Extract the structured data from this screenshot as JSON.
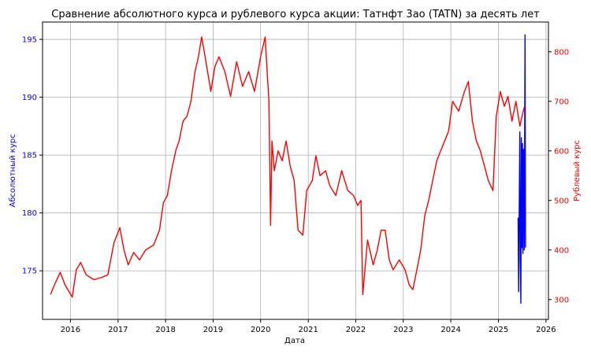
{
  "chart_data": {
    "type": "line",
    "title": "Сравнение абсолютного курса и рублевого курса акции: Татнфт 3ао (TATN) за десять лет",
    "xlabel": "Дата",
    "ylabel_left": "Абсолютный курс",
    "ylabel_right": "Рублевый курс",
    "x_ticks": [
      "2016",
      "2017",
      "2018",
      "2019",
      "2020",
      "2021",
      "2022",
      "2023",
      "2024",
      "2025",
      "2026"
    ],
    "y_left_ticks": [
      "175",
      "180",
      "185",
      "190",
      "195"
    ],
    "y_right_ticks": [
      "300",
      "400",
      "500",
      "600",
      "700",
      "800"
    ],
    "xlim": [
      "2015-06-01",
      "2026-01-20"
    ],
    "ylim_left": [
      170.8,
      196.5
    ],
    "ylim_right": [
      260,
      860
    ],
    "grid": true,
    "colors": {
      "absolute": "#0000ff",
      "ruble": "#ff0000",
      "left_axis": "#0000ff",
      "right_axis": "#ff0000"
    },
    "series": [
      {
        "axis": "left",
        "color": "#0000ff",
        "points": [
          [
            "2025-06-01",
            179.6
          ],
          [
            "2025-06-05",
            173.2
          ],
          [
            "2025-06-10",
            181.0
          ],
          [
            "2025-06-14",
            187.0
          ],
          [
            "2025-06-18",
            176.0
          ],
          [
            "2025-06-22",
            172.2
          ],
          [
            "2025-06-26",
            186.5
          ],
          [
            "2025-06-30",
            177.0
          ],
          [
            "2025-07-04",
            186.0
          ],
          [
            "2025-07-08",
            176.5
          ],
          [
            "2025-07-13",
            185.5
          ],
          [
            "2025-07-18",
            176.8
          ],
          [
            "2025-07-24",
            195.4
          ],
          [
            "2025-07-28",
            177.0
          ]
        ]
      },
      {
        "axis": "right",
        "color": "#ff0000",
        "points": [
          [
            "2015-08-01",
            310
          ],
          [
            "2015-09-01",
            330
          ],
          [
            "2015-10-15",
            355
          ],
          [
            "2015-11-20",
            330
          ],
          [
            "2016-01-15",
            305
          ],
          [
            "2016-02-15",
            360
          ],
          [
            "2016-03-20",
            375
          ],
          [
            "2016-05-01",
            350
          ],
          [
            "2016-07-01",
            340
          ],
          [
            "2016-09-01",
            345
          ],
          [
            "2016-10-15",
            350
          ],
          [
            "2016-12-01",
            415
          ],
          [
            "2017-01-15",
            445
          ],
          [
            "2017-02-15",
            400
          ],
          [
            "2017-03-20",
            370
          ],
          [
            "2017-05-01",
            395
          ],
          [
            "2017-06-15",
            380
          ],
          [
            "2017-08-01",
            400
          ],
          [
            "2017-10-01",
            410
          ],
          [
            "2017-11-15",
            440
          ],
          [
            "2017-12-15",
            495
          ],
          [
            "2018-01-15",
            510
          ],
          [
            "2018-02-15",
            560
          ],
          [
            "2018-03-20",
            600
          ],
          [
            "2018-04-15",
            620
          ],
          [
            "2018-05-15",
            660
          ],
          [
            "2018-06-15",
            670
          ],
          [
            "2018-07-15",
            700
          ],
          [
            "2018-08-15",
            760
          ],
          [
            "2018-09-10",
            790
          ],
          [
            "2018-10-05",
            830
          ],
          [
            "2018-11-01",
            790
          ],
          [
            "2018-12-15",
            720
          ],
          [
            "2019-01-15",
            770
          ],
          [
            "2019-02-15",
            790
          ],
          [
            "2019-04-01",
            760
          ],
          [
            "2019-05-15",
            710
          ],
          [
            "2019-07-01",
            780
          ],
          [
            "2019-08-15",
            730
          ],
          [
            "2019-10-01",
            760
          ],
          [
            "2019-11-15",
            720
          ],
          [
            "2020-01-01",
            790
          ],
          [
            "2020-02-05",
            830
          ],
          [
            "2020-02-20",
            760
          ],
          [
            "2020-03-05",
            700
          ],
          [
            "2020-03-18",
            450
          ],
          [
            "2020-03-28",
            620
          ],
          [
            "2020-04-15",
            560
          ],
          [
            "2020-05-15",
            600
          ],
          [
            "2020-06-15",
            580
          ],
          [
            "2020-07-15",
            620
          ],
          [
            "2020-08-15",
            570
          ],
          [
            "2020-09-15",
            540
          ],
          [
            "2020-10-15",
            440
          ],
          [
            "2020-11-20",
            430
          ],
          [
            "2020-12-20",
            520
          ],
          [
            "2021-02-01",
            540
          ],
          [
            "2021-03-01",
            590
          ],
          [
            "2021-04-01",
            550
          ],
          [
            "2021-05-15",
            560
          ],
          [
            "2021-06-15",
            530
          ],
          [
            "2021-08-01",
            510
          ],
          [
            "2021-09-15",
            560
          ],
          [
            "2021-11-01",
            520
          ],
          [
            "2021-12-15",
            510
          ],
          [
            "2022-01-15",
            490
          ],
          [
            "2022-02-10",
            500
          ],
          [
            "2022-02-24",
            310
          ],
          [
            "2022-04-01",
            420
          ],
          [
            "2022-05-15",
            370
          ],
          [
            "2022-06-15",
            400
          ],
          [
            "2022-07-15",
            440
          ],
          [
            "2022-08-15",
            440
          ],
          [
            "2022-09-15",
            380
          ],
          [
            "2022-10-15",
            360
          ],
          [
            "2022-12-01",
            380
          ],
          [
            "2023-01-15",
            360
          ],
          [
            "2023-02-15",
            330
          ],
          [
            "2023-03-15",
            320
          ],
          [
            "2023-04-15",
            360
          ],
          [
            "2023-05-15",
            400
          ],
          [
            "2023-06-15",
            470
          ],
          [
            "2023-07-15",
            500
          ],
          [
            "2023-08-15",
            540
          ],
          [
            "2023-09-15",
            580
          ],
          [
            "2023-10-15",
            600
          ],
          [
            "2023-11-15",
            620
          ],
          [
            "2023-12-15",
            640
          ],
          [
            "2024-01-15",
            700
          ],
          [
            "2024-03-01",
            680
          ],
          [
            "2024-04-15",
            720
          ],
          [
            "2024-05-15",
            740
          ],
          [
            "2024-06-15",
            660
          ],
          [
            "2024-07-15",
            620
          ],
          [
            "2024-08-15",
            600
          ],
          [
            "2024-09-15",
            570
          ],
          [
            "2024-10-15",
            540
          ],
          [
            "2024-11-20",
            520
          ],
          [
            "2024-12-15",
            670
          ],
          [
            "2025-01-15",
            720
          ],
          [
            "2025-02-15",
            690
          ],
          [
            "2025-03-15",
            710
          ],
          [
            "2025-04-15",
            660
          ],
          [
            "2025-05-15",
            700
          ],
          [
            "2025-06-15",
            650
          ],
          [
            "2025-07-01",
            670
          ],
          [
            "2025-07-20",
            690
          ]
        ]
      }
    ]
  }
}
